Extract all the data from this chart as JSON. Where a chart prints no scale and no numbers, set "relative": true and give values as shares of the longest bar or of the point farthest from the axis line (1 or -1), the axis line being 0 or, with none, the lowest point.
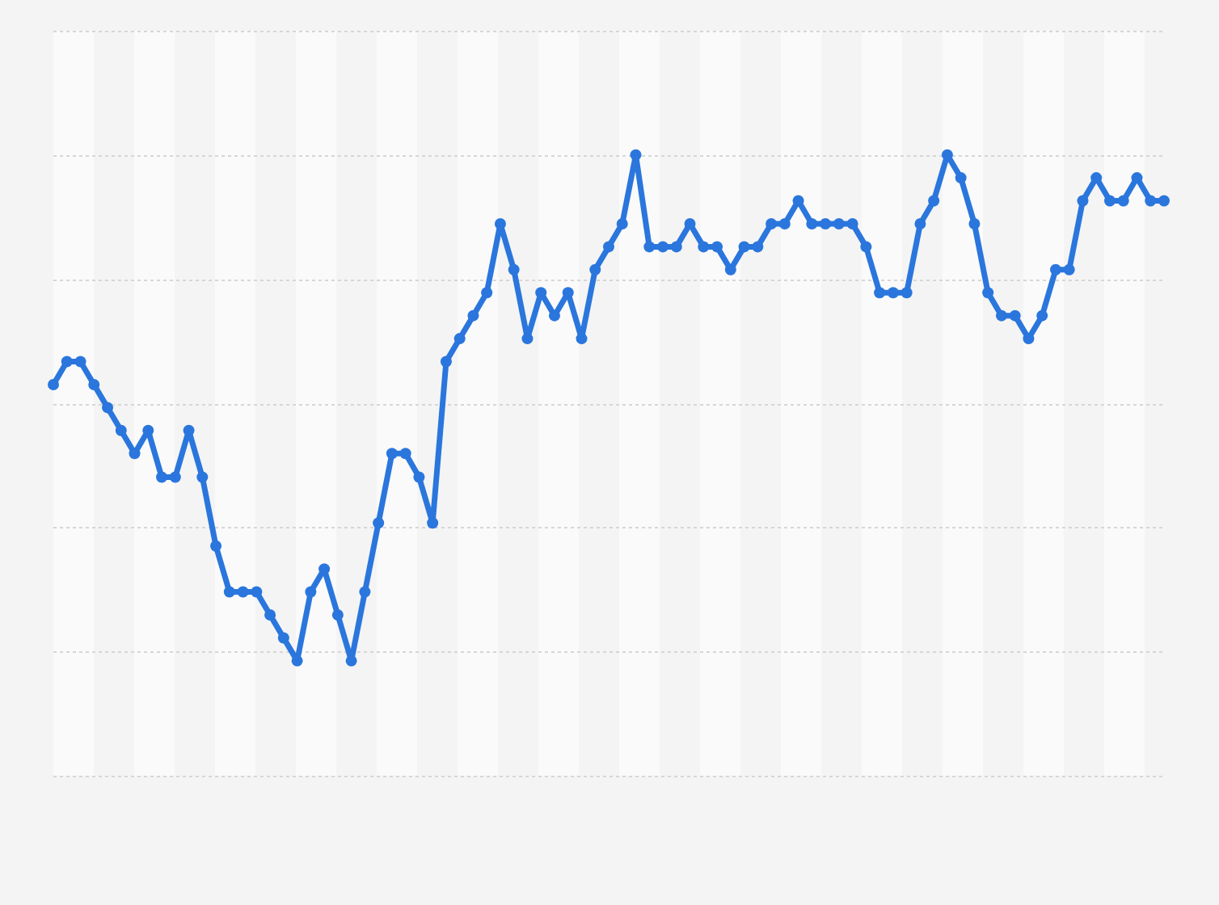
{
  "chart_data": {
    "type": "line",
    "relative": true,
    "grid": "y",
    "marker": "circle",
    "line_style": "solid",
    "categories": [
      null,
      null,
      null,
      null,
      null,
      null,
      null,
      null,
      null,
      null,
      null,
      null,
      null,
      null,
      null,
      null,
      null,
      null,
      null,
      null,
      null,
      null,
      null,
      null,
      null,
      null,
      null,
      null,
      null,
      null,
      null,
      null,
      null,
      null,
      null,
      null,
      null,
      null,
      null,
      null,
      null,
      null,
      null,
      null,
      null,
      null,
      null,
      null,
      null,
      null,
      null,
      null,
      null,
      null,
      null,
      null,
      null,
      null,
      null,
      null,
      null,
      null,
      null,
      null,
      null,
      null,
      null,
      null,
      null,
      null,
      null,
      null,
      null,
      null,
      null,
      null,
      null,
      null,
      null,
      null,
      null,
      null,
      null
    ],
    "series": [
      {
        "color": "#2a76dd",
        "values": [
          0.63,
          0.667,
          0.667,
          0.63,
          0.593,
          0.556,
          0.519,
          0.556,
          0.481,
          0.481,
          0.556,
          0.481,
          0.37,
          0.296,
          0.296,
          0.296,
          0.259,
          0.222,
          0.185,
          0.296,
          0.333,
          0.259,
          0.185,
          0.296,
          0.407,
          0.519,
          0.519,
          0.481,
          0.407,
          0.667,
          0.704,
          0.741,
          0.778,
          0.889,
          0.815,
          0.704,
          0.778,
          0.741,
          0.778,
          0.704,
          0.815,
          0.852,
          0.889,
          1,
          0.852,
          0.852,
          0.852,
          0.889,
          0.852,
          0.852,
          0.815,
          0.852,
          0.852,
          0.889,
          0.889,
          0.926,
          0.889,
          0.889,
          0.889,
          0.889,
          0.852,
          0.778,
          0.778,
          0.778,
          0.889,
          0.926,
          1,
          0.963,
          0.889,
          0.778,
          0.741,
          0.741,
          0.704,
          0.741,
          0.815,
          0.815,
          0.926,
          0.963,
          0.926,
          0.926,
          0.963,
          0.926,
          0.926
        ]
      }
    ]
  }
}
